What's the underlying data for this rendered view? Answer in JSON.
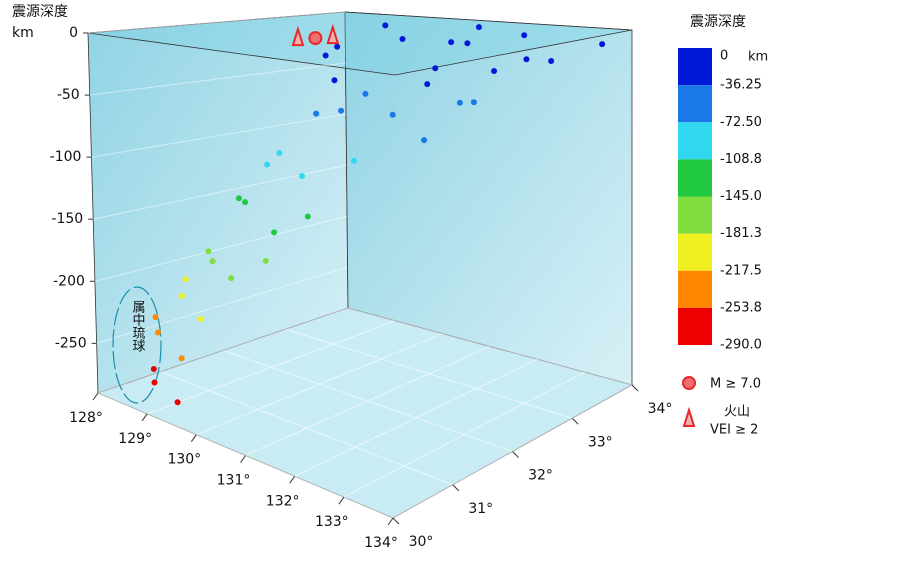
{
  "chart_data": {
    "type": "scatter3d",
    "z_title": "震源深度",
    "z_unit": "km",
    "annotation": "属中琉球",
    "xlim": [
      128,
      134
    ],
    "ylim": [
      30,
      34
    ],
    "zlim": [
      -290,
      0
    ],
    "xticks": [
      {
        "value": 128,
        "label": "128°"
      },
      {
        "value": 129,
        "label": "129°"
      },
      {
        "value": 130,
        "label": "130°"
      },
      {
        "value": 131,
        "label": "131°"
      },
      {
        "value": 132,
        "label": "132°"
      },
      {
        "value": 133,
        "label": "133°"
      },
      {
        "value": 134,
        "label": "134°"
      }
    ],
    "yticks": [
      {
        "value": 30,
        "label": "30°"
      },
      {
        "value": 31,
        "label": "31°"
      },
      {
        "value": 32,
        "label": "32°"
      },
      {
        "value": 33,
        "label": "33°"
      },
      {
        "value": 34,
        "label": "34°"
      }
    ],
    "zticks": [
      0,
      -50,
      -100,
      -150,
      -200,
      -250
    ],
    "points": {
      "x": [
        130.5,
        131.2,
        132.0,
        132.8,
        133.5,
        131.8,
        130.2,
        129.5,
        131.0,
        133.0,
        130.8,
        132.5,
        133.8,
        129.8,
        131.5,
        131.0,
        131.8,
        132.3,
        130.5,
        132.8,
        131.5,
        133.2,
        130.5,
        131.2,
        132.0,
        130.0,
        130.3,
        131.0,
        131.8,
        129.8,
        129.8,
        130.5,
        131.2,
        129.5,
        129.5,
        130.0,
        129.2,
        129.0,
        129.6,
        128.7,
        129.1,
        129.5,
        128.9
      ],
      "y": [
        33.0,
        33.5,
        33.8,
        33.2,
        33.9,
        32.5,
        32.0,
        33.5,
        31.5,
        32.5,
        34.0,
        31.8,
        32.8,
        32.5,
        33.0,
        32.0,
        31.8,
        32.5,
        31.6,
        31.5,
        31.2,
        32.0,
        31.0,
        30.8,
        31.0,
        31.2,
        30.6,
        30.5,
        30.4,
        30.9,
        30.4,
        30.2,
        30.2,
        30.7,
        30.2,
        30.1,
        30.5,
        30.2,
        30.1,
        30.4,
        30.05,
        30.1,
        30.2
      ],
      "z": [
        -10,
        -15,
        -8,
        -20,
        -12,
        -25,
        -18,
        -5,
        -30,
        -22,
        -6,
        -28,
        -14,
        -16,
        -9,
        -45,
        -55,
        -50,
        -60,
        -65,
        -48,
        -40,
        -85,
        -95,
        -80,
        -100,
        -120,
        -135,
        -115,
        -125,
        -160,
        -170,
        -150,
        -175,
        -195,
        -205,
        -190,
        -230,
        -240,
        -225,
        -265,
        -275,
        -260
      ]
    },
    "events": {
      "name": "M ≥ 7.0",
      "x": [
        130.5
      ],
      "y": [
        31.6
      ],
      "color": "#e8282b"
    },
    "volcanoes": {
      "name": "火山",
      "name2": "VEI ≥ 2",
      "x": [
        130.4,
        130.6
      ],
      "y": [
        31.4,
        31.8
      ],
      "color": "#e8282b"
    },
    "colorbar": {
      "title": "震源深度",
      "unit": "km",
      "levels": [
        0,
        -36.25,
        {
          "value": -72.5,
          "label": "-72.50"
        },
        -108.8,
        {
          "value": -145,
          "label": "-145.0"
        },
        -181.3,
        -217.5,
        -253.8,
        {
          "value": -290,
          "label": "-290.0"
        }
      ],
      "colors": [
        "#0018d8",
        "#1a78e8",
        "#30d8f0",
        "#20c840",
        "#80dd40",
        "#f0f020",
        "#ff8800",
        "#ee0000"
      ]
    }
  }
}
